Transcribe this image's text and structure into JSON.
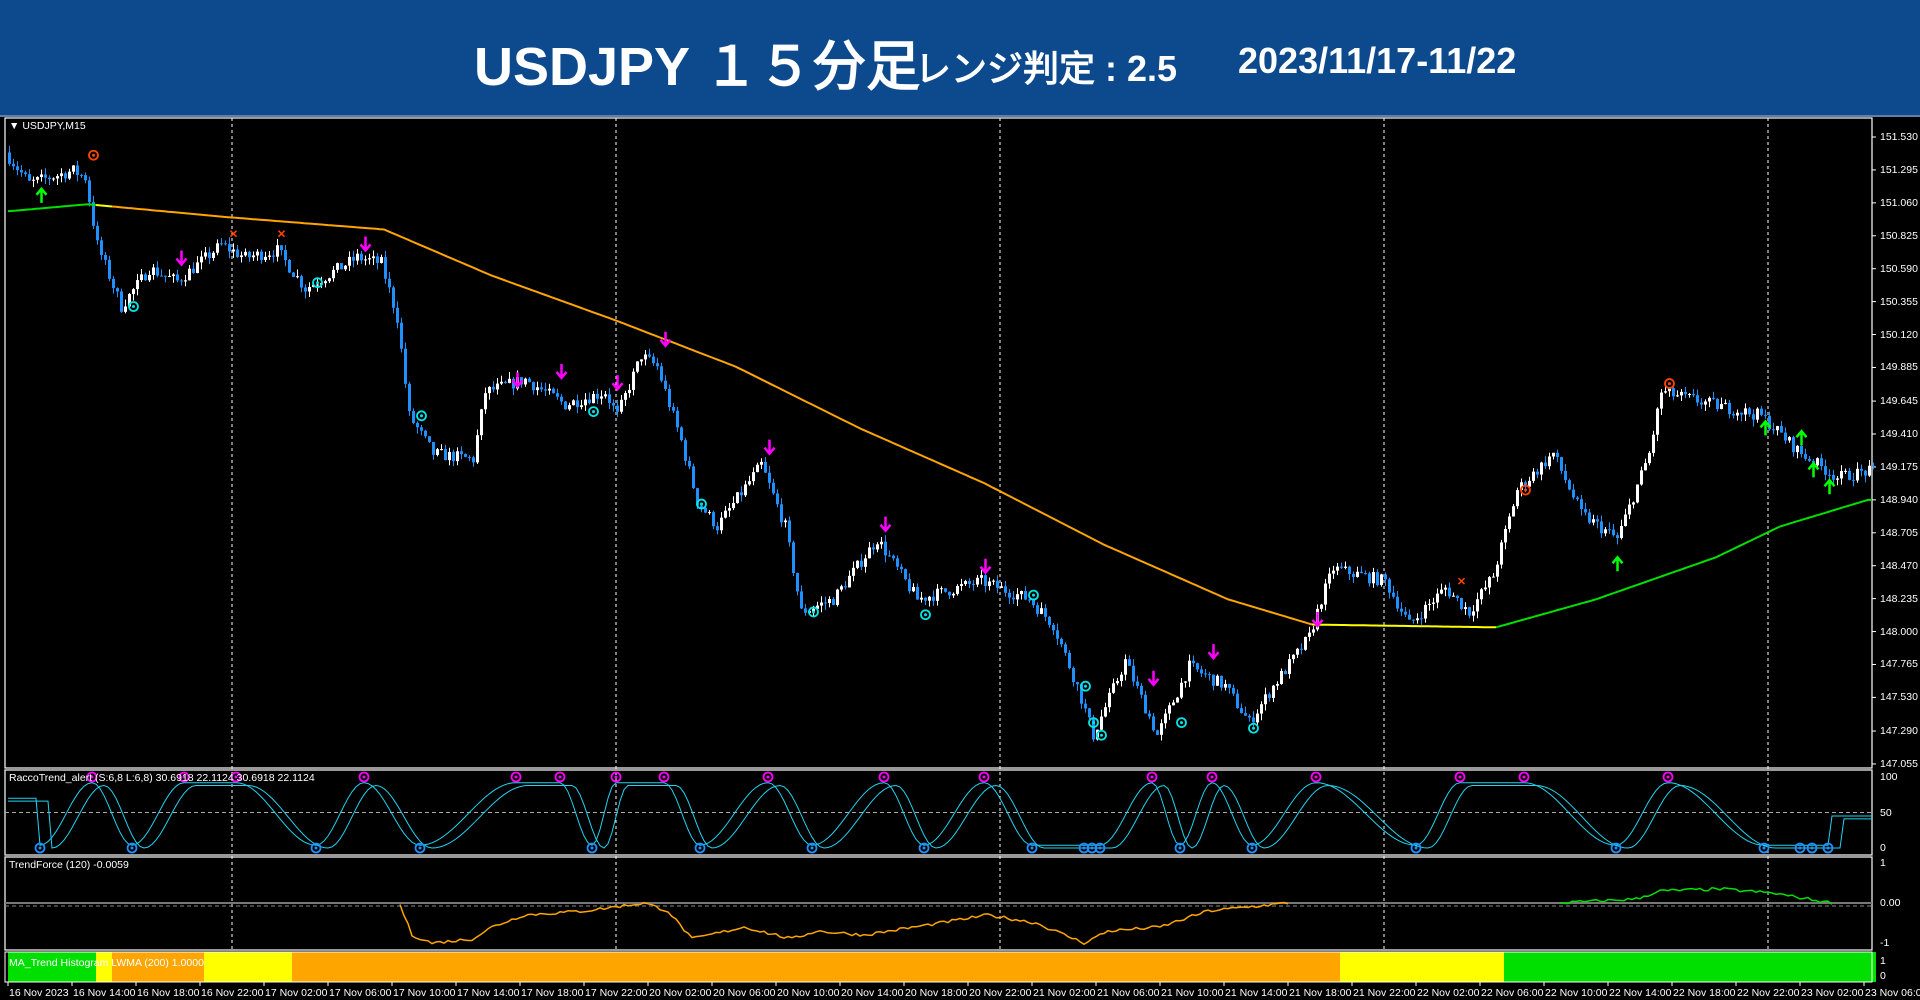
{
  "header": {
    "title": "USDJPY １５分足",
    "range_label": "レンジ判定 : 2.5",
    "date_range": "2023/11/17-11/22",
    "background": "#0d4a8d"
  },
  "chart": {
    "symbol_label": "USDJPY,M15",
    "oscillator_label": "RaccoTrend_alert  (S:6,8 L:6,8) 30.6918 22.1124 30.6918 22.1124",
    "trendforce_label": "TrendForce (120) -0.0059",
    "histogram_label": "MA_Trend Histogram LWMA (200) 1.0000",
    "colors": {
      "bull": "#ffffff",
      "bear": "#1e90ff",
      "ma_orange": "#ffa500",
      "ma_green": "#00e000",
      "ma_yellow": "#ffff00",
      "signal_magenta": "#ff00ff",
      "signal_cyan": "#00e5e5",
      "signal_orange": "#ff4500",
      "up_arrow": "#00ff00"
    }
  },
  "chart_data": {
    "type": "candlestick",
    "title": "USDJPY,M15",
    "bars_total": 467,
    "ylim": [
      147.055,
      151.53
    ],
    "price_axis": {
      "ticks": [
        "151.530",
        "151.295",
        "151.060",
        "150.825",
        "150.590",
        "150.355",
        "150.120",
        "149.885",
        "149.645",
        "149.410",
        "149.175",
        "148.940",
        "148.705",
        "148.470",
        "148.235",
        "148.000",
        "147.765",
        "147.530",
        "147.290",
        "147.055"
      ]
    },
    "time_axis": {
      "bars_per_label": 16,
      "ticks": [
        "16 Nov 2023",
        "16 Nov 14:00",
        "16 Nov 18:00",
        "16 Nov 22:00",
        "17 Nov 02:00",
        "17 Nov 06:00",
        "17 Nov 10:00",
        "17 Nov 14:00",
        "17 Nov 18:00",
        "17 Nov 22:00",
        "20 Nov 02:00",
        "20 Nov 06:00",
        "20 Nov 10:00",
        "20 Nov 14:00",
        "20 Nov 18:00",
        "20 Nov 22:00",
        "21 Nov 02:00",
        "21 Nov 06:00",
        "21 Nov 10:00",
        "21 Nov 14:00",
        "21 Nov 18:00",
        "21 Nov 22:00",
        "22 Nov 02:00",
        "22 Nov 06:00",
        "22 Nov 10:00",
        "22 Nov 14:00",
        "22 Nov 18:00",
        "22 Nov 22:00",
        "23 Nov 02:00",
        "23 Nov 06:00"
      ]
    },
    "day_separators": [
      56,
      152,
      248,
      344,
      440
    ],
    "price_path": [
      [
        0,
        151.42
      ],
      [
        6,
        151.2
      ],
      [
        17,
        151.29
      ],
      [
        20,
        151.24
      ],
      [
        23,
        150.76
      ],
      [
        29,
        150.32
      ],
      [
        36,
        150.59
      ],
      [
        43,
        150.5
      ],
      [
        54,
        150.76
      ],
      [
        60,
        150.67
      ],
      [
        68,
        150.72
      ],
      [
        75,
        150.45
      ],
      [
        88,
        150.67
      ],
      [
        94,
        150.63
      ],
      [
        98,
        150.24
      ],
      [
        101,
        149.54
      ],
      [
        107,
        149.27
      ],
      [
        117,
        149.23
      ],
      [
        120,
        149.71
      ],
      [
        130,
        149.8
      ],
      [
        140,
        149.62
      ],
      [
        150,
        149.71
      ],
      [
        153,
        149.54
      ],
      [
        159,
        149.97
      ],
      [
        163,
        149.89
      ],
      [
        169,
        149.36
      ],
      [
        173,
        148.93
      ],
      [
        178,
        148.75
      ],
      [
        189,
        149.19
      ],
      [
        195,
        148.75
      ],
      [
        199,
        148.14
      ],
      [
        207,
        148.23
      ],
      [
        218,
        148.66
      ],
      [
        228,
        148.23
      ],
      [
        244,
        148.36
      ],
      [
        256,
        148.23
      ],
      [
        262,
        148.05
      ],
      [
        268,
        147.61
      ],
      [
        272,
        147.26
      ],
      [
        280,
        147.79
      ],
      [
        288,
        147.26
      ],
      [
        296,
        147.75
      ],
      [
        305,
        147.61
      ],
      [
        311,
        147.35
      ],
      [
        317,
        147.61
      ],
      [
        326,
        147.96
      ],
      [
        329,
        148.23
      ],
      [
        332,
        148.45
      ],
      [
        345,
        148.36
      ],
      [
        351,
        148.05
      ],
      [
        360,
        148.31
      ],
      [
        366,
        148.14
      ],
      [
        372,
        148.4
      ],
      [
        378,
        149.01
      ],
      [
        387,
        149.27
      ],
      [
        394,
        148.84
      ],
      [
        403,
        148.66
      ],
      [
        411,
        149.27
      ],
      [
        414,
        149.71
      ],
      [
        427,
        149.62
      ],
      [
        439,
        149.54
      ],
      [
        449,
        149.27
      ],
      [
        458,
        149.1
      ],
      [
        465,
        149.14
      ]
    ],
    "lwma_200": [
      [
        0,
        151.0
      ],
      [
        20,
        151.05
      ],
      [
        54,
        150.96
      ],
      [
        94,
        150.87
      ],
      [
        121,
        150.54
      ],
      [
        152,
        150.22
      ],
      [
        182,
        149.89
      ],
      [
        213,
        149.45
      ],
      [
        244,
        149.06
      ],
      [
        274,
        148.62
      ],
      [
        305,
        148.23
      ],
      [
        326,
        148.05
      ],
      [
        372,
        148.03
      ],
      [
        397,
        148.23
      ],
      [
        427,
        148.53
      ],
      [
        443,
        148.75
      ],
      [
        465,
        148.94
      ]
    ],
    "lwma_color_segments": [
      [
        0,
        22,
        "green"
      ],
      [
        22,
        26,
        "yellow"
      ],
      [
        26,
        326,
        "orange"
      ],
      [
        326,
        372,
        "yellow"
      ],
      [
        372,
        466,
        "green"
      ]
    ],
    "sell_arrows": [
      [
        43,
        150.62
      ],
      [
        89,
        150.72
      ],
      [
        127,
        149.75
      ],
      [
        138,
        149.81
      ],
      [
        152,
        149.73
      ],
      [
        164,
        150.04
      ],
      [
        190,
        149.27
      ],
      [
        219,
        148.72
      ],
      [
        244,
        148.42
      ],
      [
        286,
        147.62
      ],
      [
        301,
        147.81
      ],
      [
        327,
        148.04
      ]
    ],
    "buy_arrows": [
      [
        8,
        151.16
      ],
      [
        402,
        148.53
      ],
      [
        439,
        149.5
      ],
      [
        448,
        149.43
      ],
      [
        451,
        149.2
      ],
      [
        455,
        149.08
      ]
    ],
    "cyan_targets": [
      [
        31,
        150.32
      ],
      [
        77,
        150.49
      ],
      [
        103,
        149.54
      ],
      [
        146,
        149.57
      ],
      [
        173,
        148.91
      ],
      [
        201,
        148.14
      ],
      [
        229,
        148.12
      ],
      [
        256,
        148.26
      ],
      [
        269,
        147.61
      ],
      [
        271,
        147.35
      ],
      [
        273,
        147.26
      ],
      [
        293,
        147.35
      ],
      [
        311,
        147.31
      ]
    ],
    "orange_targets": [
      [
        21,
        151.4
      ],
      [
        379,
        149.01
      ],
      [
        415,
        149.77
      ]
    ],
    "x_marks": [
      [
        56,
        150.84
      ],
      [
        68,
        150.84
      ],
      [
        363,
        148.36
      ]
    ],
    "oscillator": {
      "ylim": [
        0,
        100
      ],
      "ticks": [
        "100",
        "50",
        "0"
      ],
      "peaks": [
        21,
        44,
        57,
        89,
        127,
        138,
        152,
        164,
        190,
        219,
        244,
        286,
        301,
        327,
        363,
        379,
        415
      ],
      "troughs": [
        8,
        31,
        77,
        103,
        146,
        173,
        201,
        229,
        256,
        269,
        271,
        273,
        293,
        311,
        352,
        402,
        439,
        448,
        451,
        455
      ]
    },
    "trendforce": {
      "ylim": [
        -1,
        1
      ],
      "ticks": [
        "1",
        "0.00",
        "-1"
      ],
      "negative": [
        [
          98,
          -0.05
        ],
        [
          101,
          -0.8
        ],
        [
          106,
          -1.0
        ],
        [
          116,
          -0.9
        ],
        [
          121,
          -0.6
        ],
        [
          129,
          -0.3
        ],
        [
          144,
          -0.2
        ],
        [
          159,
          0
        ],
        [
          165,
          -0.2
        ],
        [
          171,
          -0.9
        ],
        [
          184,
          -0.6
        ],
        [
          196,
          -0.9
        ],
        [
          202,
          -0.7
        ],
        [
          214,
          -0.8
        ],
        [
          233,
          -0.5
        ],
        [
          245,
          -0.3
        ],
        [
          257,
          -0.5
        ],
        [
          269,
          -1.0
        ],
        [
          275,
          -0.7
        ],
        [
          288,
          -0.6
        ],
        [
          300,
          -0.2
        ],
        [
          320,
          0
        ]
      ],
      "positive": [
        [
          388,
          0
        ],
        [
          407,
          0.1
        ],
        [
          413,
          0.3
        ],
        [
          428,
          0.35
        ],
        [
          441,
          0.25
        ],
        [
          456,
          0
        ]
      ]
    },
    "histogram": {
      "ticks": [
        "1",
        "0"
      ],
      "segments": [
        [
          0,
          22,
          "green"
        ],
        [
          22,
          26,
          "yellow"
        ],
        [
          26,
          49,
          "orange"
        ],
        [
          49,
          71,
          "yellow"
        ],
        [
          71,
          333,
          "orange"
        ],
        [
          333,
          374,
          "yellow"
        ],
        [
          374,
          467,
          "green"
        ]
      ]
    }
  }
}
